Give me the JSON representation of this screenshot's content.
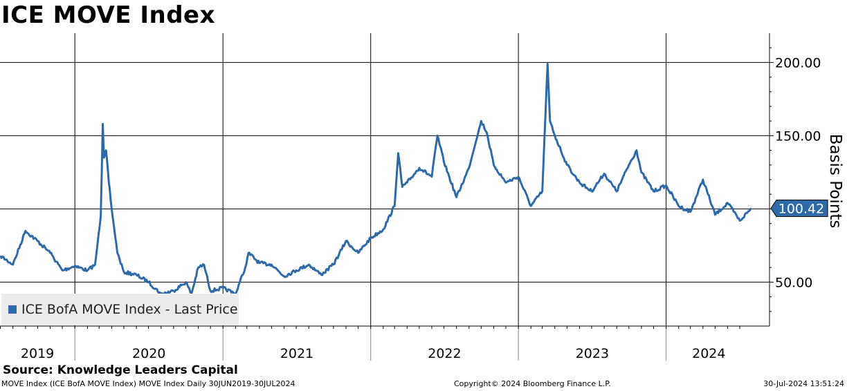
{
  "header": {
    "title": "ICE MOVE Index"
  },
  "legend": {
    "label": "ICE BofA MOVE Index - Last Price"
  },
  "source": "Source: Knowledge Leaders Capital",
  "footer": {
    "left": "MOVE Index (ICE BofA MOVE Index) MOVE Index  Daily 30JUN2019-30JUL2024",
    "center": "Copyright© 2024 Bloomberg Finance L.P.",
    "right": "30-Jul-2024 13:51:24"
  },
  "colors": {
    "line": "#2f6aa8",
    "grid": "#000000",
    "last_price_badge": "#2f6aa8"
  },
  "chart_data": {
    "type": "line",
    "title": "ICE MOVE Index",
    "ylabel": "Basis Points",
    "ylim": [
      20,
      220
    ],
    "yticks": [
      50,
      100,
      150,
      200
    ],
    "ytick_labels": [
      "50.00",
      "100.00",
      "150.00",
      "200.00"
    ],
    "x_range": [
      "2019-06-30",
      "2024-07-30"
    ],
    "year_labels": [
      "2019",
      "2020",
      "2021",
      "2022",
      "2023",
      "2024"
    ],
    "grid": true,
    "legend_position": "bottom-left",
    "last_value": 100.42,
    "last_value_label": "100.42",
    "series": [
      {
        "name": "ICE BofA MOVE Index - Last Price",
        "points": [
          [
            "2019-07-01",
            68
          ],
          [
            "2019-08-01",
            62
          ],
          [
            "2019-09-01",
            85
          ],
          [
            "2019-10-01",
            78
          ],
          [
            "2019-11-01",
            70
          ],
          [
            "2019-12-01",
            58
          ],
          [
            "2020-01-01",
            61
          ],
          [
            "2020-02-01",
            58
          ],
          [
            "2020-02-20",
            62
          ],
          [
            "2020-03-05",
            95
          ],
          [
            "2020-03-10",
            158
          ],
          [
            "2020-03-13",
            135
          ],
          [
            "2020-03-18",
            140
          ],
          [
            "2020-03-25",
            118
          ],
          [
            "2020-04-01",
            100
          ],
          [
            "2020-04-15",
            70
          ],
          [
            "2020-05-01",
            57
          ],
          [
            "2020-06-01",
            55
          ],
          [
            "2020-07-01",
            50
          ],
          [
            "2020-08-01",
            42
          ],
          [
            "2020-09-01",
            44
          ],
          [
            "2020-10-01",
            50
          ],
          [
            "2020-10-15",
            42
          ],
          [
            "2020-11-01",
            60
          ],
          [
            "2020-11-15",
            62
          ],
          [
            "2020-12-01",
            44
          ],
          [
            "2021-01-01",
            46
          ],
          [
            "2021-02-01",
            42
          ],
          [
            "2021-02-25",
            60
          ],
          [
            "2021-03-05",
            70
          ],
          [
            "2021-04-01",
            63
          ],
          [
            "2021-05-01",
            62
          ],
          [
            "2021-06-01",
            54
          ],
          [
            "2021-07-01",
            58
          ],
          [
            "2021-08-01",
            62
          ],
          [
            "2021-09-01",
            55
          ],
          [
            "2021-10-01",
            62
          ],
          [
            "2021-11-01",
            78
          ],
          [
            "2021-12-01",
            70
          ],
          [
            "2022-01-01",
            80
          ],
          [
            "2022-02-01",
            86
          ],
          [
            "2022-03-01",
            102
          ],
          [
            "2022-03-10",
            138
          ],
          [
            "2022-03-20",
            115
          ],
          [
            "2022-04-01",
            118
          ],
          [
            "2022-05-01",
            128
          ],
          [
            "2022-06-01",
            122
          ],
          [
            "2022-06-15",
            150
          ],
          [
            "2022-07-01",
            132
          ],
          [
            "2022-08-01",
            108
          ],
          [
            "2022-09-01",
            128
          ],
          [
            "2022-10-01",
            160
          ],
          [
            "2022-10-15",
            152
          ],
          [
            "2022-11-01",
            130
          ],
          [
            "2022-12-01",
            118
          ],
          [
            "2023-01-01",
            122
          ],
          [
            "2023-02-01",
            102
          ],
          [
            "2023-03-01",
            112
          ],
          [
            "2023-03-14",
            199
          ],
          [
            "2023-03-20",
            160
          ],
          [
            "2023-04-01",
            150
          ],
          [
            "2023-05-01",
            130
          ],
          [
            "2023-06-01",
            118
          ],
          [
            "2023-07-01",
            112
          ],
          [
            "2023-08-01",
            124
          ],
          [
            "2023-09-01",
            112
          ],
          [
            "2023-10-01",
            130
          ],
          [
            "2023-10-20",
            140
          ],
          [
            "2023-11-01",
            125
          ],
          [
            "2023-12-01",
            112
          ],
          [
            "2024-01-01",
            116
          ],
          [
            "2024-02-01",
            102
          ],
          [
            "2024-03-01",
            98
          ],
          [
            "2024-04-01",
            120
          ],
          [
            "2024-05-01",
            96
          ],
          [
            "2024-06-01",
            104
          ],
          [
            "2024-07-01",
            92
          ],
          [
            "2024-07-30",
            100.42
          ]
        ]
      }
    ]
  }
}
